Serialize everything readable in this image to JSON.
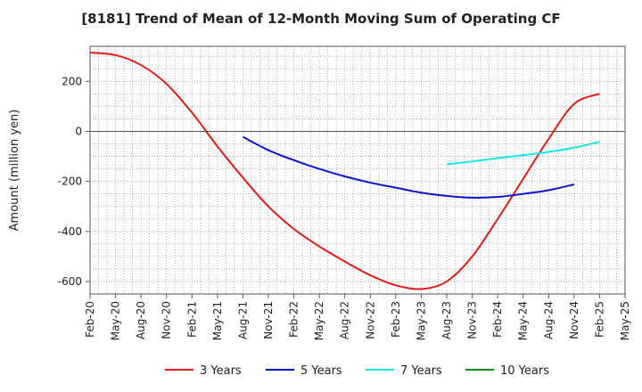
{
  "chart_data": {
    "type": "line",
    "title": "[8181]  Trend of Mean of 12-Month Moving Sum of Operating CF",
    "xlabel": "",
    "ylabel": "Amount (million yen)",
    "ylim": [
      -650,
      340
    ],
    "yticks": [
      200,
      0,
      -200,
      -400,
      -600
    ],
    "x_tick_labels": [
      "Feb-20",
      "May-20",
      "Aug-20",
      "Nov-20",
      "Feb-21",
      "May-21",
      "Aug-21",
      "Nov-21",
      "Feb-22",
      "May-22",
      "Aug-22",
      "Nov-22",
      "Feb-23",
      "May-23",
      "Aug-23",
      "Nov-23",
      "Feb-24",
      "May-24",
      "Aug-24",
      "Nov-24",
      "Feb-25",
      "May-25"
    ],
    "grid": true,
    "legend_position": "bottom",
    "series": [
      {
        "name": "3 Years",
        "color": "#e31a1c",
        "points": [
          [
            0,
            315
          ],
          [
            1,
            305
          ],
          [
            2,
            265
          ],
          [
            3,
            190
          ],
          [
            4,
            75
          ],
          [
            5,
            -60
          ],
          [
            6,
            -185
          ],
          [
            7,
            -300
          ],
          [
            8,
            -390
          ],
          [
            9,
            -460
          ],
          [
            10,
            -520
          ],
          [
            11,
            -575
          ],
          [
            12,
            -615
          ],
          [
            13,
            -630
          ],
          [
            14,
            -600
          ],
          [
            15,
            -500
          ],
          [
            16,
            -350
          ],
          [
            17,
            -190
          ],
          [
            18,
            -30
          ],
          [
            19,
            110
          ],
          [
            20,
            150
          ]
        ]
      },
      {
        "name": "5 Years",
        "color": "#0a14c8",
        "points": [
          [
            6,
            -22
          ],
          [
            7,
            -75
          ],
          [
            8,
            -115
          ],
          [
            9,
            -150
          ],
          [
            10,
            -180
          ],
          [
            11,
            -205
          ],
          [
            12,
            -225
          ],
          [
            13,
            -245
          ],
          [
            14,
            -258
          ],
          [
            15,
            -265
          ],
          [
            16,
            -262
          ],
          [
            17,
            -250
          ],
          [
            18,
            -235
          ],
          [
            19,
            -212
          ]
        ]
      },
      {
        "name": "7 Years",
        "color": "#19e6e6",
        "points": [
          [
            14,
            -132
          ],
          [
            15,
            -120
          ],
          [
            16,
            -107
          ],
          [
            17,
            -95
          ],
          [
            18,
            -82
          ],
          [
            19,
            -65
          ],
          [
            20,
            -42
          ]
        ]
      },
      {
        "name": "10 Years",
        "color": "#1a8c1a",
        "points": []
      }
    ]
  }
}
